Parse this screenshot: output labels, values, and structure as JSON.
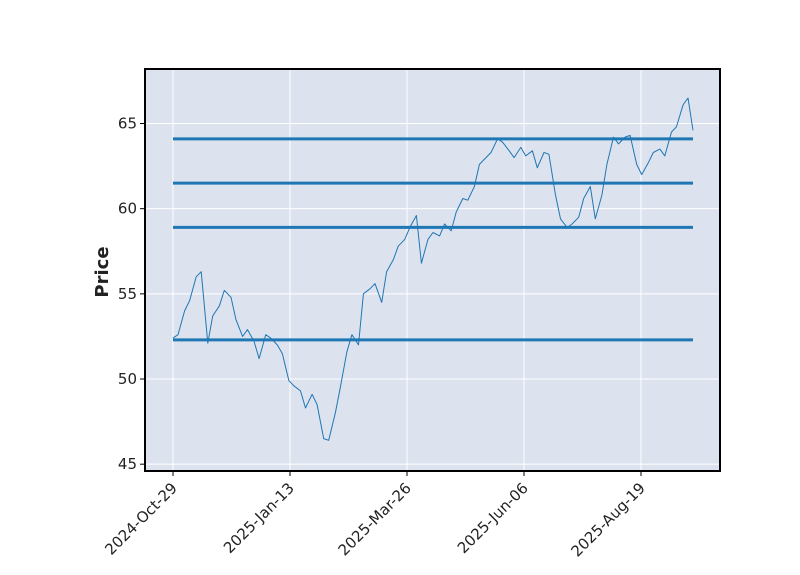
{
  "chart_data": {
    "type": "line",
    "title": "",
    "xlabel": "",
    "ylabel": "Price",
    "ylim": [
      44.6,
      68.2
    ],
    "grid": true,
    "x_tick_labels": [
      "2024-Oct-29",
      "2025-Jan-13",
      "2025-Mar-26",
      "2025-Jun-06",
      "2025-Aug-19"
    ],
    "y_ticks": [
      45,
      50,
      55,
      60,
      65
    ],
    "series": [
      {
        "color": "#1f77b4",
        "x": [
          "2024-10-29",
          "2024-11-01",
          "2024-11-05",
          "2024-11-08",
          "2024-11-12",
          "2024-11-15",
          "2024-11-19",
          "2024-11-22",
          "2024-11-26",
          "2024-11-29",
          "2024-12-03",
          "2024-12-06",
          "2024-12-10",
          "2024-12-13",
          "2024-12-17",
          "2024-12-20",
          "2024-12-24",
          "2024-12-27",
          "2024-12-31",
          "2025-01-03",
          "2025-01-07",
          "2025-01-10",
          "2025-01-14",
          "2025-01-17",
          "2025-01-21",
          "2025-01-24",
          "2025-01-28",
          "2025-01-31",
          "2025-02-04",
          "2025-02-07",
          "2025-02-11",
          "2025-02-14",
          "2025-02-18",
          "2025-02-21",
          "2025-02-25",
          "2025-02-28",
          "2025-03-04",
          "2025-03-07",
          "2025-03-11",
          "2025-03-14",
          "2025-03-18",
          "2025-03-21",
          "2025-03-25",
          "2025-03-28",
          "2025-04-01",
          "2025-04-04",
          "2025-04-08",
          "2025-04-11",
          "2025-04-15",
          "2025-04-18",
          "2025-04-22",
          "2025-04-25",
          "2025-04-29",
          "2025-05-02",
          "2025-05-06",
          "2025-05-09",
          "2025-05-13",
          "2025-05-16",
          "2025-05-20",
          "2025-05-23",
          "2025-05-27",
          "2025-05-30",
          "2025-06-03",
          "2025-06-06",
          "2025-06-10",
          "2025-06-13",
          "2025-06-17",
          "2025-06-20",
          "2025-06-24",
          "2025-06-27",
          "2025-07-01",
          "2025-07-04",
          "2025-07-08",
          "2025-07-11",
          "2025-07-15",
          "2025-07-18",
          "2025-07-22",
          "2025-07-25",
          "2025-07-29",
          "2025-08-01",
          "2025-08-05",
          "2025-08-08",
          "2025-08-12",
          "2025-08-15",
          "2025-08-19",
          "2025-08-22",
          "2025-08-26",
          "2025-08-29",
          "2025-09-02",
          "2025-09-05",
          "2025-09-08"
        ],
        "values": [
          52.4,
          52.6,
          54.0,
          54.6,
          56.0,
          56.3,
          52.1,
          53.7,
          54.3,
          55.2,
          54.8,
          53.5,
          52.5,
          52.9,
          52.2,
          51.2,
          52.6,
          52.4,
          52.0,
          51.5,
          49.9,
          49.6,
          49.3,
          48.3,
          49.1,
          48.5,
          46.5,
          46.4,
          48.0,
          49.5,
          51.6,
          52.6,
          52.0,
          55.0,
          55.3,
          55.6,
          54.5,
          56.3,
          57.0,
          57.8,
          58.2,
          58.9,
          59.6,
          56.8,
          58.2,
          58.6,
          58.4,
          59.1,
          58.7,
          59.8,
          60.6,
          60.5,
          61.3,
          62.6,
          63.0,
          63.3,
          64.1,
          63.9,
          63.4,
          63.0,
          63.6,
          63.1,
          63.4,
          62.4,
          63.3,
          63.2,
          60.8,
          59.4,
          58.9,
          59.1,
          59.5,
          60.6,
          61.3,
          59.4,
          60.8,
          62.6,
          64.2,
          63.8,
          64.2,
          64.3,
          62.6,
          62.0,
          62.7,
          63.3,
          63.5,
          63.1,
          64.5,
          64.8,
          66.1,
          66.5,
          64.6
        ]
      }
    ],
    "hlines": [
      64.1,
      61.5,
      58.9,
      52.3
    ],
    "hline_color": "#1f77b4"
  }
}
